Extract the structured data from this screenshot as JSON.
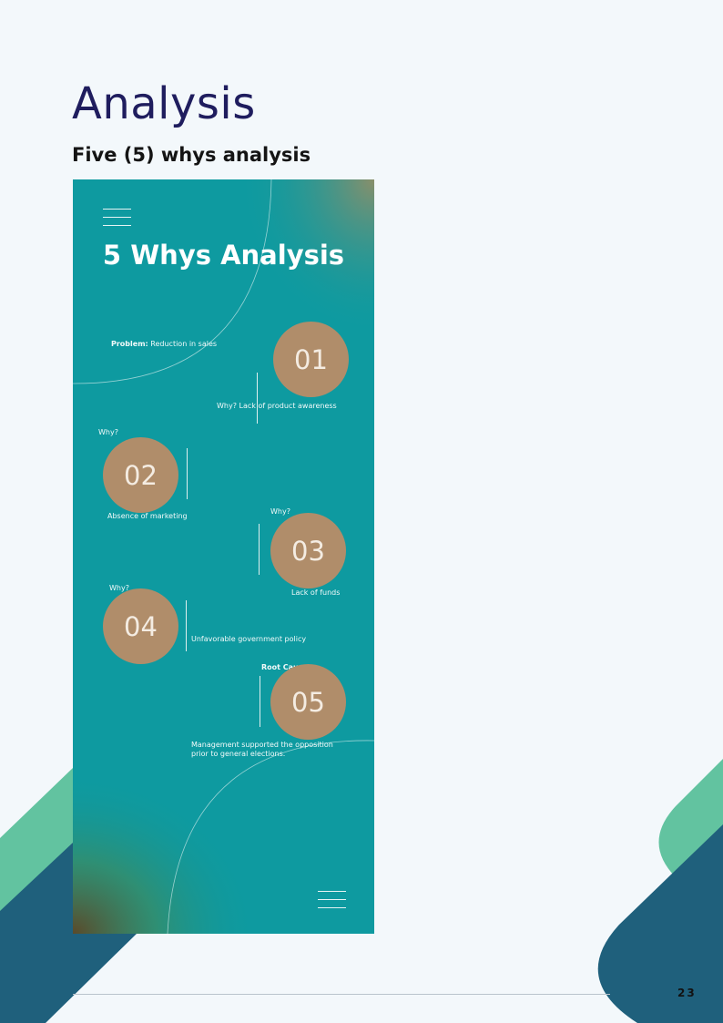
{
  "page": {
    "title": "Analysis",
    "subtitle": "Five (5) whys analysis",
    "page_number": "23"
  },
  "infographic": {
    "title": "5 Whys Analysis",
    "problem_label": "Problem:",
    "problem_text": "Reduction in sales",
    "steps": [
      {
        "number": "01",
        "question": "",
        "answer": "Why? Lack of product awareness"
      },
      {
        "number": "02",
        "question": "Why?",
        "answer": "Absence of marketing"
      },
      {
        "number": "03",
        "question": "Why?",
        "answer": "Lack of funds"
      },
      {
        "number": "04",
        "question": "Why?",
        "answer": "Unfavorable government policy"
      },
      {
        "number": "05",
        "question": "Root Cause",
        "answer_line1": "Management supported the opposition",
        "answer_line2": "prior to general elections."
      }
    ]
  },
  "colors": {
    "title": "#1f1d5e",
    "teal": "#0e9aa0",
    "circle": "#b08d6a",
    "deco_green": "#62c3a0",
    "deco_navy": "#1f607c"
  },
  "icons": [
    "menu-icon",
    "menu-icon"
  ]
}
